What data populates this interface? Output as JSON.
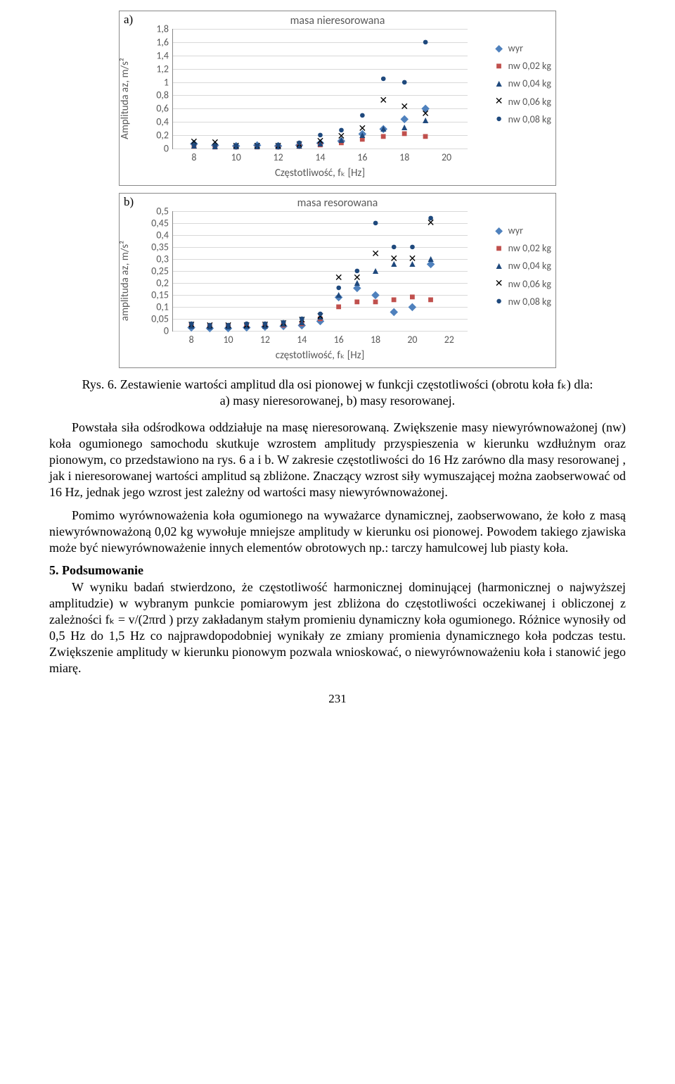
{
  "chartA": {
    "panel_label": "a)",
    "title": "masa nieresorowana",
    "ylabel": "Amplituda aᴢ, m/s²",
    "xlabel": "Częstotliwość, fₖ [Hz]",
    "ylim": [
      0,
      1.8
    ],
    "ytick_step": 0.2,
    "yticks": [
      "0",
      "0,2",
      "0,4",
      "0,6",
      "0,8",
      "1",
      "1,2",
      "1,4",
      "1,6",
      "1,8"
    ],
    "xlim": [
      7,
      21
    ],
    "xticks": [
      8,
      10,
      12,
      14,
      16,
      18,
      20
    ],
    "grid_color": "#d9d9d9",
    "axis_color": "#888888",
    "background_color": "#ffffff",
    "tick_fontsize": 14,
    "label_fontsize": 15,
    "title_fontsize": 16,
    "series": [
      {
        "name": "wyr",
        "label": "wyr",
        "marker": "diamond",
        "color": "#4f81bd",
        "x": [
          8,
          9,
          10,
          11,
          12,
          13,
          14,
          15,
          16,
          17,
          18,
          19
        ],
        "y": [
          0.07,
          0.05,
          0.04,
          0.05,
          0.04,
          0.05,
          0.08,
          0.12,
          0.22,
          0.3,
          0.45,
          0.6
        ]
      },
      {
        "name": "nw002",
        "label": "nw 0,02 kg",
        "marker": "square",
        "color": "#c0504d",
        "x": [
          8,
          9,
          10,
          11,
          12,
          13,
          14,
          15,
          16,
          17,
          18,
          19
        ],
        "y": [
          0.03,
          0.02,
          0.02,
          0.02,
          0.02,
          0.03,
          0.05,
          0.09,
          0.14,
          0.18,
          0.22,
          0.18
        ]
      },
      {
        "name": "nw004",
        "label": "nw 0,04 kg",
        "marker": "triangle",
        "color": "#1f497d",
        "x": [
          8,
          9,
          10,
          11,
          12,
          13,
          14,
          15,
          16,
          17,
          18,
          19
        ],
        "y": [
          0.04,
          0.03,
          0.03,
          0.03,
          0.03,
          0.04,
          0.07,
          0.13,
          0.2,
          0.3,
          0.32,
          0.42
        ]
      },
      {
        "name": "nw006",
        "label": "nw 0,06 kg",
        "marker": "cross",
        "color": "#000000",
        "x": [
          8,
          9,
          10,
          11,
          12,
          13,
          14,
          15,
          16,
          17,
          18,
          19
        ],
        "y": [
          0.1,
          0.09,
          0.03,
          0.03,
          0.03,
          0.05,
          0.11,
          0.18,
          0.3,
          0.72,
          0.62,
          0.52
        ]
      },
      {
        "name": "nw008",
        "label": "nw 0,08 kg",
        "marker": "circle",
        "color": "#1f497d",
        "x": [
          8,
          9,
          10,
          11,
          12,
          13,
          14,
          15,
          16,
          17,
          18,
          19
        ],
        "y": [
          0.05,
          0.04,
          0.04,
          0.04,
          0.05,
          0.08,
          0.2,
          0.28,
          0.5,
          1.05,
          1.0,
          1.6
        ]
      }
    ]
  },
  "chartB": {
    "panel_label": "b)",
    "title": "masa  resorowana",
    "ylabel": "amplituda aᴢ, m/s²",
    "xlabel": "częstotliwość, fₖ [Hz]",
    "ylim": [
      0,
      0.5
    ],
    "ytick_step": 0.05,
    "yticks": [
      "0",
      "0,05",
      "0,1",
      "0,15",
      "0,2",
      "0,25",
      "0,3",
      "0,35",
      "0,4",
      "0,45",
      "0,5"
    ],
    "xlim": [
      7,
      23
    ],
    "xticks": [
      8,
      10,
      12,
      14,
      16,
      18,
      20,
      22
    ],
    "grid_color": "#d9d9d9",
    "axis_color": "#888888",
    "background_color": "#ffffff",
    "tick_fontsize": 14,
    "label_fontsize": 15,
    "title_fontsize": 16,
    "series": [
      {
        "name": "wyr",
        "label": "wyr",
        "marker": "diamond",
        "color": "#4f81bd",
        "x": [
          8,
          9,
          10,
          11,
          12,
          13,
          14,
          15,
          16,
          17,
          18,
          19,
          20,
          21
        ],
        "y": [
          0.015,
          0.012,
          0.012,
          0.015,
          0.018,
          0.02,
          0.025,
          0.04,
          0.14,
          0.18,
          0.15,
          0.08,
          0.1,
          0.28
        ]
      },
      {
        "name": "nw002",
        "label": "nw 0,02 kg",
        "marker": "square",
        "color": "#c0504d",
        "x": [
          8,
          9,
          10,
          11,
          12,
          13,
          14,
          15,
          16,
          17,
          18,
          19,
          20,
          21
        ],
        "y": [
          0.025,
          0.02,
          0.02,
          0.02,
          0.022,
          0.025,
          0.03,
          0.05,
          0.1,
          0.12,
          0.12,
          0.13,
          0.14,
          0.13
        ]
      },
      {
        "name": "nw004",
        "label": "nw 0,04 kg",
        "marker": "triangle",
        "color": "#1f497d",
        "x": [
          8,
          9,
          10,
          11,
          12,
          13,
          14,
          15,
          16,
          17,
          18,
          19,
          20,
          21
        ],
        "y": [
          0.02,
          0.018,
          0.018,
          0.02,
          0.022,
          0.028,
          0.035,
          0.06,
          0.15,
          0.2,
          0.25,
          0.28,
          0.28,
          0.3
        ]
      },
      {
        "name": "nw006",
        "label": "nw 0,06 kg",
        "marker": "cross",
        "color": "#000000",
        "x": [
          8,
          9,
          10,
          11,
          12,
          13,
          14,
          15,
          16,
          17,
          18,
          19,
          20,
          21
        ],
        "y": [
          0.025,
          0.022,
          0.02,
          0.022,
          0.025,
          0.03,
          0.045,
          0.06,
          0.22,
          0.22,
          0.32,
          0.3,
          0.3,
          0.45
        ]
      },
      {
        "name": "nw008",
        "label": "nw 0,08 kg",
        "marker": "circle",
        "color": "#1f497d",
        "x": [
          8,
          9,
          10,
          11,
          12,
          13,
          14,
          15,
          16,
          17,
          18,
          19,
          20,
          21
        ],
        "y": [
          0.03,
          0.025,
          0.025,
          0.028,
          0.03,
          0.035,
          0.05,
          0.07,
          0.18,
          0.25,
          0.45,
          0.35,
          0.35,
          0.47
        ]
      }
    ]
  },
  "legend": {
    "items": [
      {
        "marker": "diamond",
        "color": "#4f81bd",
        "label": "wyr"
      },
      {
        "marker": "square",
        "color": "#c0504d",
        "label": "nw 0,02 kg"
      },
      {
        "marker": "triangle",
        "color": "#1f497d",
        "label": "nw 0,04 kg"
      },
      {
        "marker": "cross",
        "color": "#000000",
        "label": "nw 0,06 kg"
      },
      {
        "marker": "circle",
        "color": "#1f497d",
        "label": "nw 0,08 kg"
      }
    ]
  },
  "caption": "Rys. 6. Zestawienie wartości amplitud dla osi pionowej w funkcji częstotliwości (obrotu koła fₖ) dla: a) masy nieresorowanej, b) masy resorowanej.",
  "para1": "Powstała siła odśrodkowa oddziałuje na masę nieresorowaną. Zwiększenie masy niewyrównoważonej (nw) koła ogumionego samochodu skutkuje wzrostem amplitudy przyspieszenia w kierunku wzdłużnym oraz pionowym, co przedstawiono na rys. 6 a i b. W zakresie częstotliwości do 16 Hz zarówno dla masy resorowanej , jak i nieresorowanej wartości amplitud są zbliżone. Znaczący wzrost siły wymuszającej można zaobserwować od 16 Hz, jednak jego wzrost jest zależny od wartości masy niewyrównoważonej.",
  "para2": "Pomimo wyrównoważenia koła ogumionego na wyważarce dynamicznej, zaobserwowano, że koło z masą niewyrównoważoną 0,02 kg wywołuje mniejsze amplitudy w kierunku osi pionowej. Powodem takiego zjawiska może być niewyrównoważenie innych elementów obrotowych np.: tarczy hamulcowej lub piasty koła.",
  "section_heading": "5. Podsumowanie",
  "para3": "W wyniku badań stwierdzono, że częstotliwość harmonicznej dominującej (harmonicznej o najwyższej amplitudzie) w wybranym punkcie pomiarowym jest zbliżona do częstotliwości oczekiwanej i obliczonej z zależności fₖ = v/(2πrd ) przy zakładanym stałym promieniu dynamiczny koła ogumionego. Różnice wynosiły od 0,5 Hz do 1,5 Hz co najprawdopodobniej wynikały ze zmiany promienia dynamicznego koła podczas testu. Zwiększenie amplitudy w kierunku pionowym pozwala wnioskować, o niewyrównoważeniu koła i stanowić jego miarę.",
  "page_number": "231"
}
